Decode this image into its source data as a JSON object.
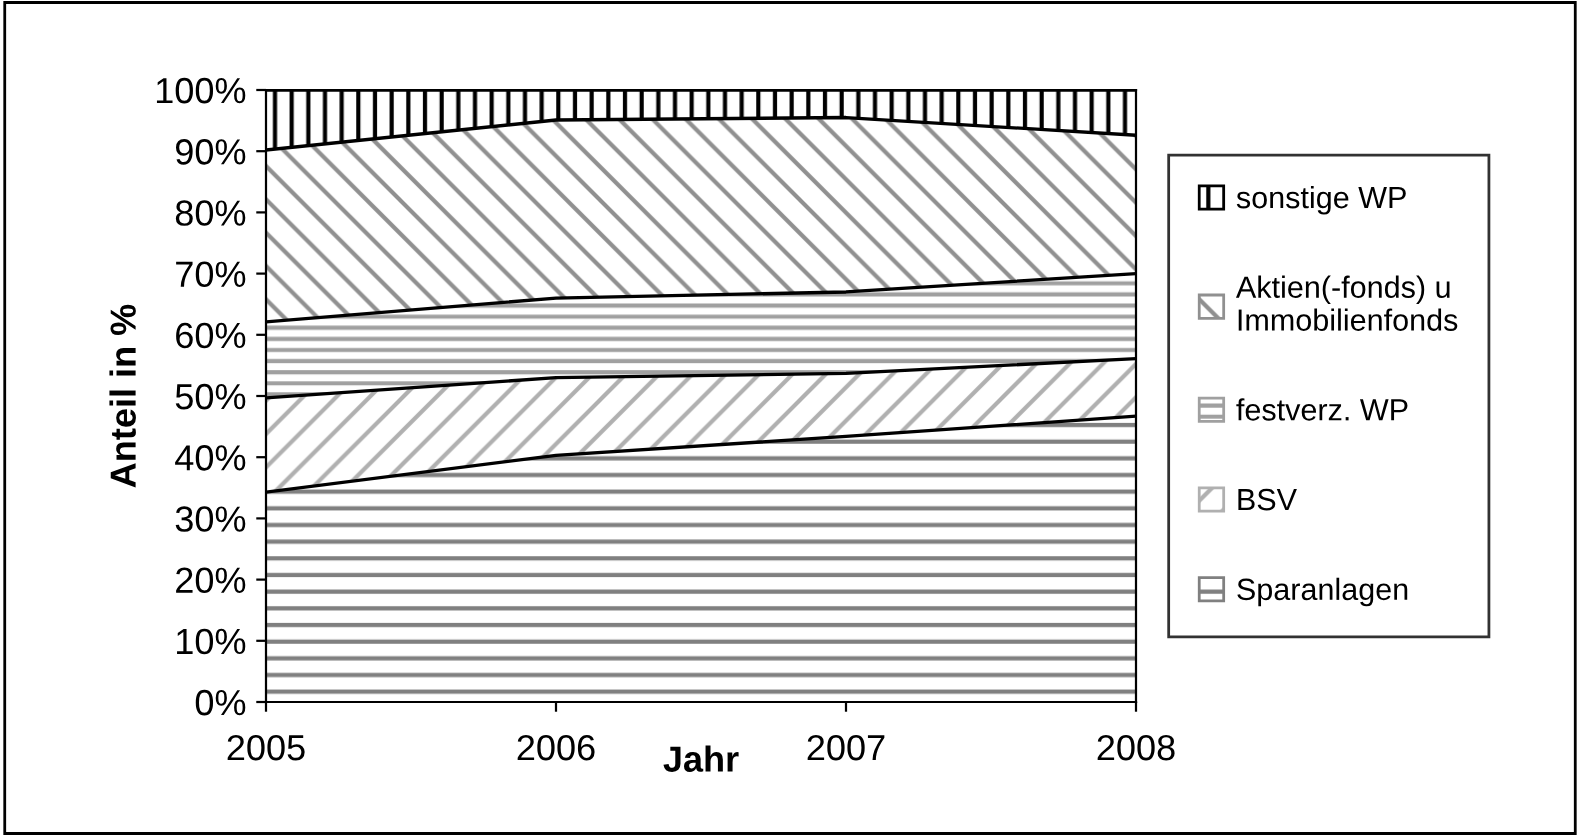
{
  "chart_data": {
    "type": "area",
    "stacked": true,
    "xlabel": "Jahr",
    "ylabel": "Anteil in %",
    "x": [
      2005,
      2006,
      2007,
      2008
    ],
    "series": [
      {
        "name": "Sparanlagen",
        "color": "#808080",
        "values": [
          34.3,
          40.3,
          43.4,
          46.7
        ]
      },
      {
        "name": "BSV",
        "color": "#b0b0b0",
        "values": [
          15.4,
          12.7,
          10.3,
          9.4
        ]
      },
      {
        "name": "festverz. WP",
        "color": "#a0a0a0",
        "values": [
          12.4,
          13.0,
          13.3,
          13.9
        ]
      },
      {
        "name": "Aktien(-fonds) u\nImmobilienfonds",
        "color": "#909090",
        "values": [
          28.1,
          29.1,
          28.5,
          22.6
        ]
      },
      {
        "name": "sonstige WP",
        "color": "#000000",
        "values": [
          9.8,
          4.9,
          4.5,
          7.4
        ]
      }
    ],
    "xlim": [
      2005,
      2008
    ],
    "xticks": [
      2005,
      2006,
      2007,
      2008
    ],
    "ylim": [
      0,
      100
    ],
    "yticks": [
      {
        "value": 0,
        "label": "0%"
      },
      {
        "value": 10,
        "label": "10%"
      },
      {
        "value": 20,
        "label": "20%"
      },
      {
        "value": 30,
        "label": "30%"
      },
      {
        "value": 40,
        "label": "40%"
      },
      {
        "value": 50,
        "label": "50%"
      },
      {
        "value": 60,
        "label": "60%"
      },
      {
        "value": 70,
        "label": "70%"
      },
      {
        "value": 80,
        "label": "80%"
      },
      {
        "value": 90,
        "label": "90%"
      },
      {
        "value": 100,
        "label": "100%"
      }
    ],
    "grid": false,
    "legend": "right"
  }
}
